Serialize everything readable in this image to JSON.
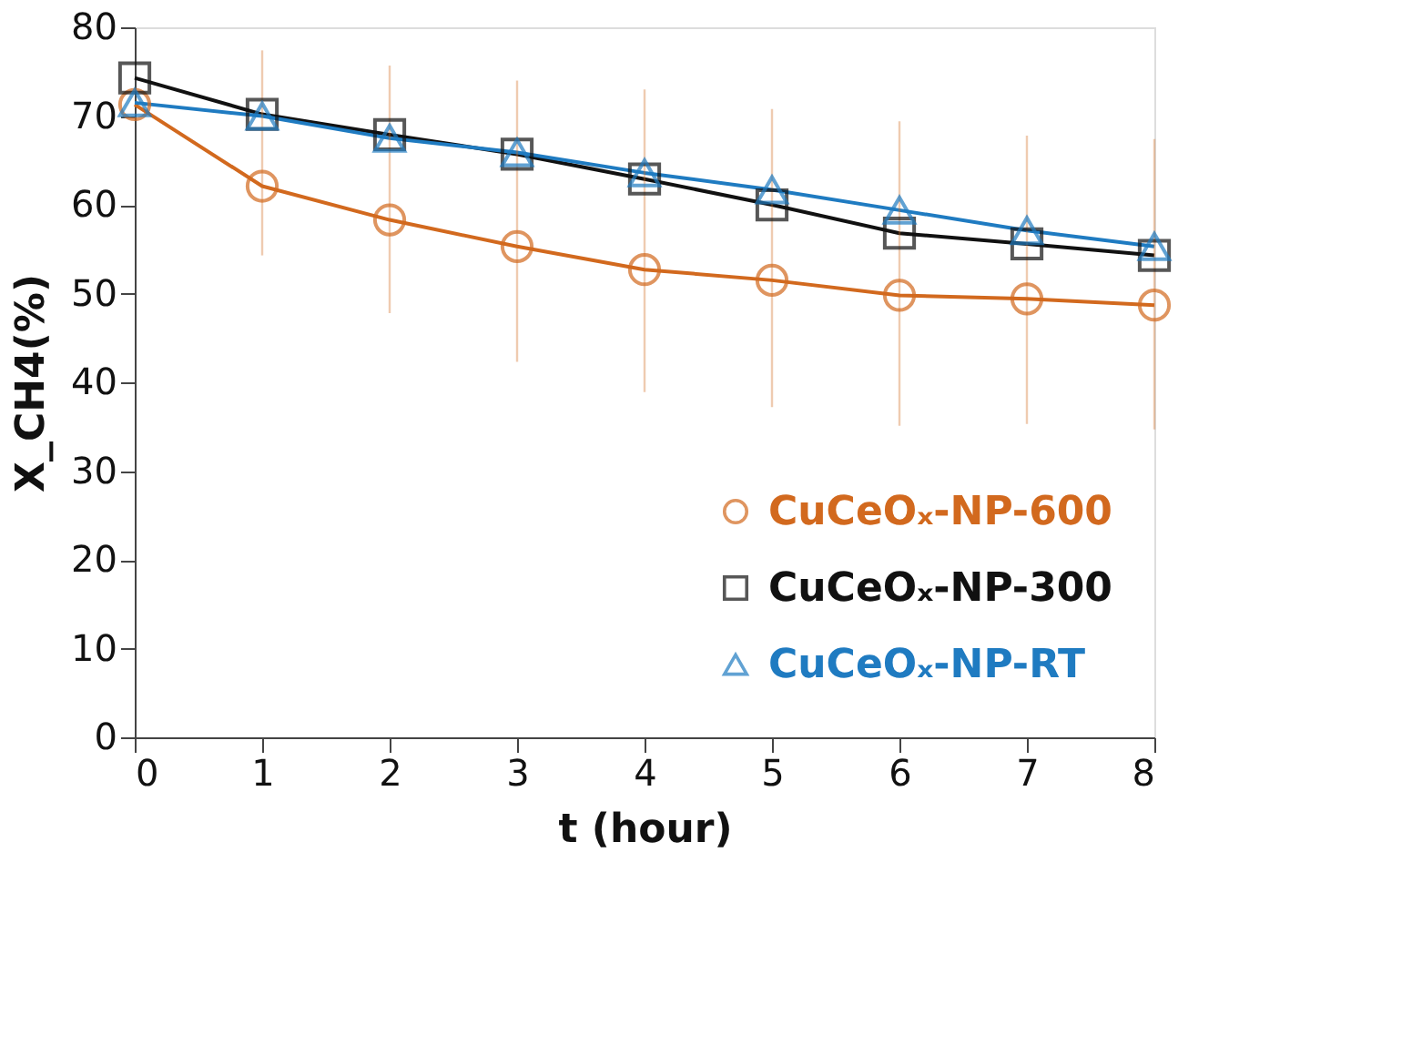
{
  "chart_data": {
    "type": "line",
    "xlabel": "t (hour)",
    "ylabel": "X_CH4(%)",
    "x": [
      0,
      1,
      2,
      3,
      4,
      5,
      6,
      7,
      8
    ],
    "xlim": [
      0,
      8
    ],
    "xticks": [
      0,
      1,
      2,
      3,
      4,
      5,
      6,
      7,
      8
    ],
    "ylim": [
      0,
      80
    ],
    "yticks": [
      0,
      10,
      20,
      30,
      40,
      50,
      60,
      70,
      80
    ],
    "grid": false,
    "legend": "bottom right",
    "line_style": "solid",
    "series": [
      {
        "name": "CuCeOₓ-NP-600",
        "color": "#d2691e",
        "marker": "circle",
        "values": [
          71.3,
          62.1,
          58.3,
          55.3,
          52.7,
          51.5,
          49.8,
          49.4,
          48.7
        ],
        "errors": [
          null,
          [
            54.3,
            77.4
          ],
          [
            47.8,
            75.7
          ],
          [
            42.3,
            74
          ],
          [
            38.9,
            73
          ],
          [
            37.2,
            70.8
          ],
          [
            35.1,
            69.4
          ],
          [
            35.3,
            67.8
          ],
          [
            34.7,
            67.4
          ]
        ]
      },
      {
        "name": "CuCeOₓ-NP-300",
        "color": "#111111",
        "marker": "square",
        "values": [
          74.3,
          70.2,
          67.9,
          65.7,
          62.9,
          60.0,
          56.8,
          55.6,
          54.3
        ]
      },
      {
        "name": "CuCeOₓ-NP-RT",
        "color": "#1f7bc1",
        "marker": "triangle",
        "values": [
          71.5,
          70.0,
          67.5,
          65.9,
          63.6,
          61.7,
          59.4,
          57.1,
          55.3
        ]
      }
    ]
  }
}
